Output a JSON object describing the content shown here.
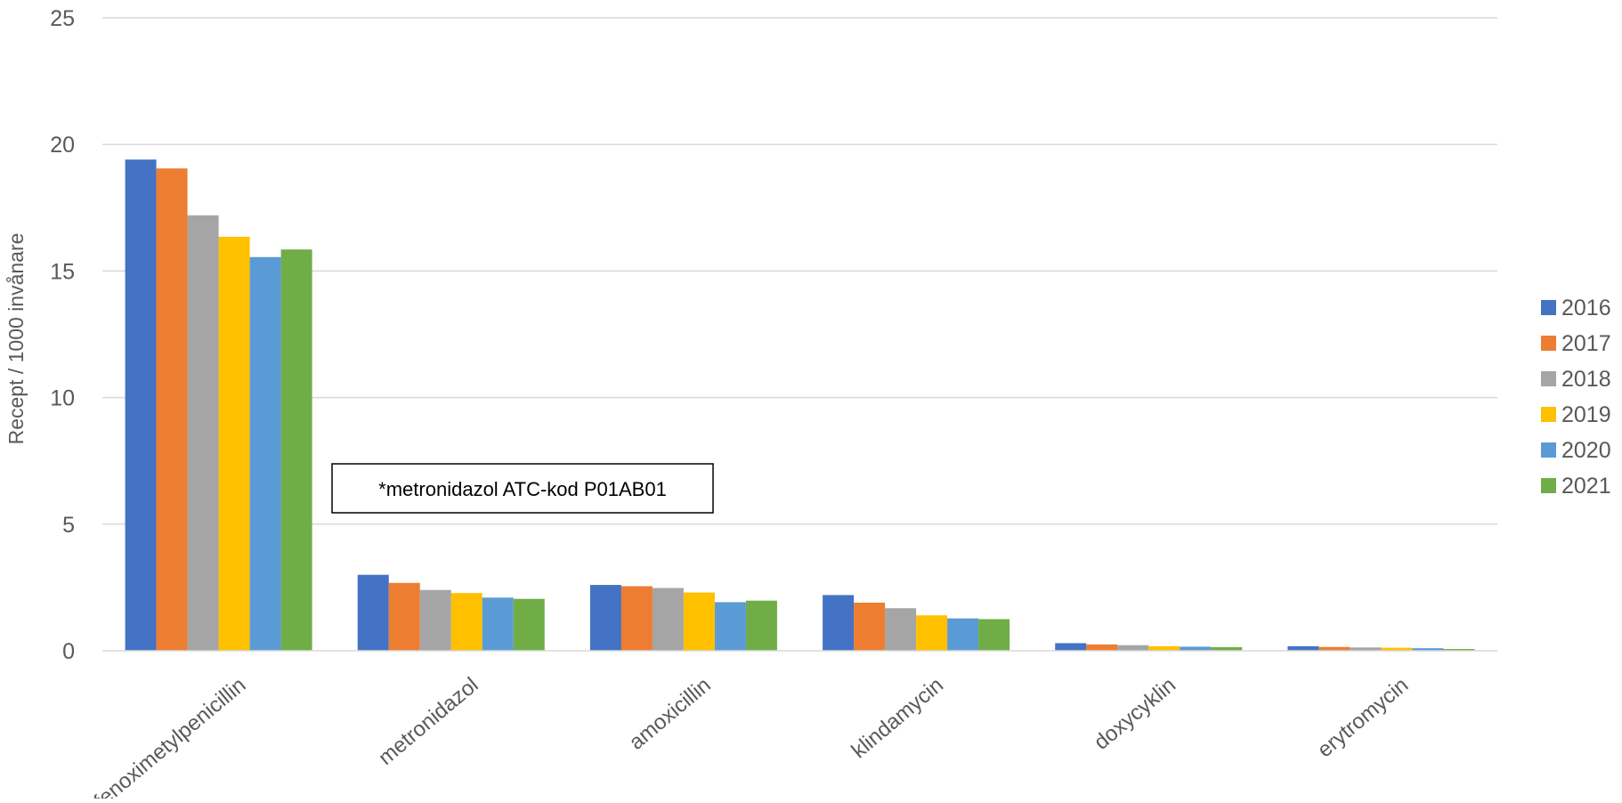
{
  "chart_data": {
    "type": "bar",
    "title": "",
    "xlabel": "",
    "ylabel": "Recept / 1000 invånare",
    "ylim": [
      0,
      25
    ],
    "yticks": [
      0,
      5,
      10,
      15,
      20,
      25
    ],
    "grid": true,
    "legend_position": "right",
    "annotation": "*metronidazol ATC-kod P01AB01",
    "categories": [
      "fenoximetylpenicillin",
      "metronidazol",
      "amoxicillin",
      "klindamycin",
      "doxycyklin",
      "erytromycin"
    ],
    "series": [
      {
        "name": "2016",
        "color": "#4472C4",
        "values": [
          19.4,
          3.0,
          2.6,
          2.2,
          0.3,
          0.18
        ]
      },
      {
        "name": "2017",
        "color": "#ED7D31",
        "values": [
          19.05,
          2.68,
          2.55,
          1.9,
          0.25,
          0.15
        ]
      },
      {
        "name": "2018",
        "color": "#A5A5A5",
        "values": [
          17.2,
          2.4,
          2.48,
          1.68,
          0.22,
          0.13
        ]
      },
      {
        "name": "2019",
        "color": "#FFC000",
        "values": [
          16.35,
          2.28,
          2.3,
          1.4,
          0.18,
          0.12
        ]
      },
      {
        "name": "2020",
        "color": "#5B9BD5",
        "values": [
          15.55,
          2.1,
          1.92,
          1.28,
          0.16,
          0.1
        ]
      },
      {
        "name": "2021",
        "color": "#70AD47",
        "values": [
          15.85,
          2.05,
          1.98,
          1.25,
          0.14,
          0.07
        ]
      }
    ]
  }
}
